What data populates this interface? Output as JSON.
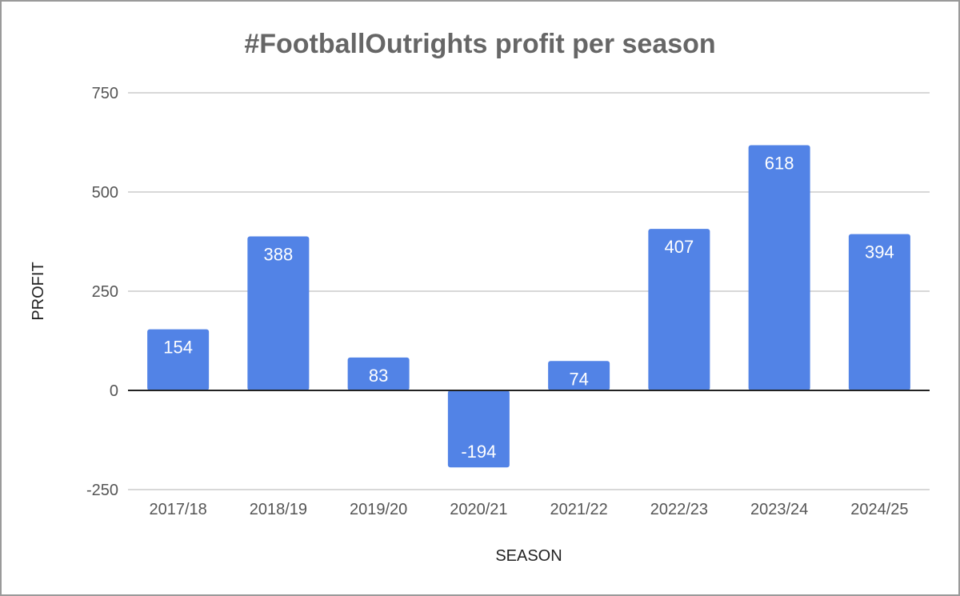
{
  "chart_data": {
    "type": "bar",
    "title": "#FootballOutrights profit per season",
    "xlabel": "SEASON",
    "ylabel": "PROFIT",
    "categories": [
      "2017/18",
      "2018/19",
      "2019/20",
      "2020/21",
      "2021/22",
      "2022/23",
      "2023/24",
      "2024/25"
    ],
    "values": [
      154,
      388,
      83,
      -194,
      74,
      407,
      618,
      394
    ],
    "data_labels": [
      "154",
      "388",
      "83",
      "-194",
      "74",
      "407",
      "618",
      "394"
    ],
    "ylim": [
      -250,
      750
    ],
    "yticks": [
      750,
      500,
      250,
      0,
      -250
    ],
    "ytick_labels": [
      "750",
      "500",
      "250",
      "0",
      "-250"
    ],
    "grid": true,
    "legend": "none",
    "bar_color": "#5283e6",
    "gridline_color": "#cccccc",
    "zero_line_color": "#222222"
  }
}
